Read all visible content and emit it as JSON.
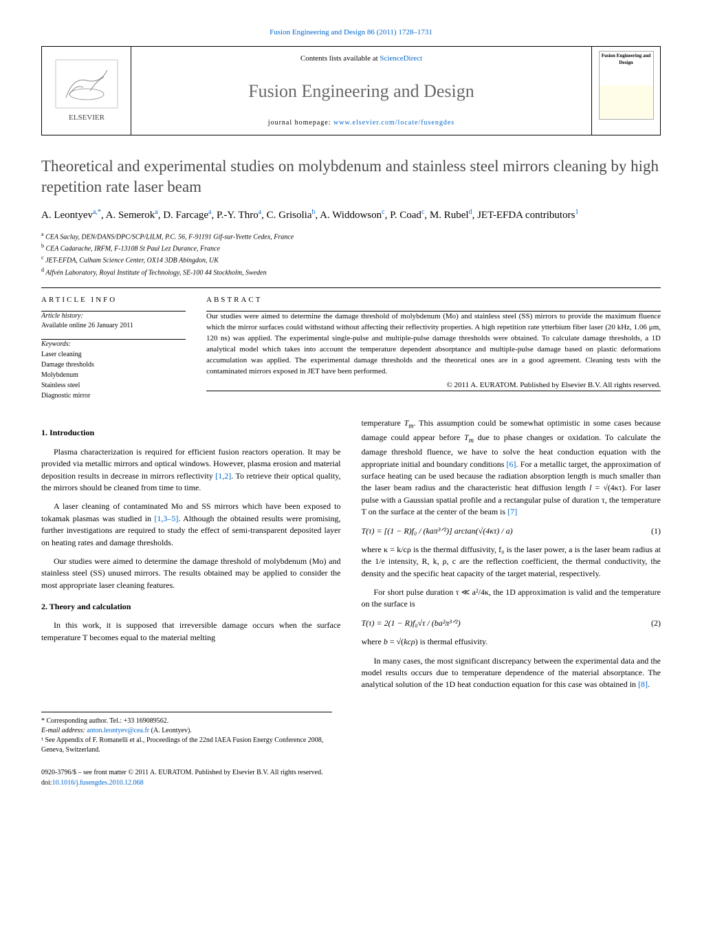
{
  "header": {
    "topLink": "Fusion Engineering and Design 86 (2011) 1728–1731",
    "listsPrefix": "Contents lists available at ",
    "listsLink": "ScienceDirect",
    "journalTitle": "Fusion Engineering and Design",
    "homepagePrefix": "journal homepage: ",
    "homepageLink": "www.elsevier.com/locate/fusengdes",
    "coverTitle": "Fusion Engineering and Design"
  },
  "article": {
    "title": "Theoretical and experimental studies on molybdenum and stainless steel mirrors cleaning by high repetition rate laser beam",
    "authorsHtml": "A. Leontyev<sup>a,*</sup>, A. Semerok<sup>a</sup>, D. Farcage<sup>a</sup>, P.-Y. Thro<sup>a</sup>, C. Grisolia<sup>b</sup>, A. Widdowson<sup>c</sup>, P. Coad<sup>c</sup>, M. Rubel<sup>d</sup>, JET-EFDA contributors<sup>1</sup>"
  },
  "affiliations": {
    "a": "CEA Saclay, DEN/DANS/DPC/SCP/LILM, P.C. 56, F-91191 Gif-sur-Yvette Cedex, France",
    "b": "CEA Cadarache, IRFM, F-13108 St Paul Lez Durance, France",
    "c": "JET-EFDA, Culham Science Center, OX14 3DB Abingdon, UK",
    "d": "Alfvén Laboratory, Royal Institute of Technology, SE-100 44 Stockholm, Sweden"
  },
  "info": {
    "articleInfoHdr": "ARTICLE INFO",
    "historyHdr": "Article history:",
    "historyLine": "Available online 26 January 2011",
    "keywordsHdr": "Keywords:",
    "keywords": [
      "Laser cleaning",
      "Damage thresholds",
      "Molybdenum",
      "Stainless steel",
      "Diagnostic mirror"
    ]
  },
  "abstract": {
    "hdr": "ABSTRACT",
    "text": "Our studies were aimed to determine the damage threshold of molybdenum (Mo) and stainless steel (SS) mirrors to provide the maximum fluence which the mirror surfaces could withstand without affecting their reflectivity properties. A high repetition rate ytterbium fiber laser (20 kHz, 1.06 μm, 120 ns) was applied. The experimental single-pulse and multiple-pulse damage thresholds were obtained. To calculate damage thresholds, a 1D analytical model which takes into account the temperature dependent absorptance and multiple-pulse damage based on plastic deformations accumulation was applied. The experimental damage thresholds and the theoretical ones are in a good agreement. Cleaning tests with the contaminated mirrors exposed in JET have been performed.",
    "copyright": "© 2011 A. EURATOM. Published by Elsevier B.V. All rights reserved."
  },
  "body": {
    "sec1": "1.  Introduction",
    "p1": "Plasma characterization is required for efficient fusion reactors operation. It may be provided via metallic mirrors and optical windows. However, plasma erosion and material deposition results in decrease in mirrors reflectivity [1,2]. To retrieve their optical quality, the mirrors should be cleaned from time to time.",
    "p2": "A laser cleaning of contaminated Mo and SS mirrors which have been exposed to tokamak plasmas was studied in [1,3–5]. Although the obtained results were promising, further investigations are required to study the effect of semi-transparent deposited layer on heating rates and damage thresholds.",
    "p3": "Our studies were aimed to determine the damage threshold of molybdenum (Mo) and stainless steel (SS) unused mirrors. The results obtained may be applied to consider the most appropriate laser cleaning features.",
    "sec2": "2.  Theory and calculation",
    "p4": "In this work, it is supposed that irreversible damage occurs when the surface temperature T becomes equal to the material melting",
    "p5a": "temperature ",
    "p5b": ". This assumption could be somewhat optimistic in some cases because damage could appear before ",
    "p5c": " due to phase changes or oxidation. To calculate the damage threshold fluence, we have to solve the heat conduction equation with the appropriate initial and boundary conditions [6]. For a metallic target, the approximation of surface heating can be used because the radiation absorption length is much smaller than the laser beam radius and the characteristic heat diffusion length ",
    "p5d": ". For laser pulse with a Gaussian spatial profile and a rectangular pulse of duration τ, the temperature T on the surface at the center of the beam is [7]",
    "eq1": "T(τ) = [(1 − R)f₀ / (kaπ³ᐟ²)] arctan(√(4κτ) / a)",
    "eq1no": "(1)",
    "p6": "where κ = k/cρ is the thermal diffusivity, f₀ is the laser power, a is the laser beam radius at the 1/e intensity, R, k, ρ, c are the reflection coefficient, the thermal conductivity, the density and the specific heat capacity of the target material, respectively.",
    "p7": "For short pulse duration τ ≪ a²/4κ, the 1D approximation is valid and the temperature on the surface is",
    "eq2": "T(τ) = 2(1 − R)f₀√τ / (ba²π³ᐟ²)",
    "eq2no": "(2)",
    "p8a": "where ",
    "p8b": " is thermal effusivity.",
    "p9": "In many cases, the most significant discrepancy between the experimental data and the model results occurs due to temperature dependence of the material absorptance. The analytical solution of the 1D heat conduction equation for this case was obtained in [8]."
  },
  "footnotes": {
    "corr": "* Corresponding author. Tel.: +33 169089562.",
    "emailLabel": "E-mail address: ",
    "email": "anton.leontyev@cea.fr",
    "emailSuffix": " (A. Leontyev).",
    "note1": "¹ See Appendix of F. Romanelli et al., Proceedings of the 22nd IAEA Fusion Energy Conference 2008, Geneva, Switzerland."
  },
  "footer": {
    "line1": "0920-3796/$ – see front matter © 2011 A. EURATOM. Published by Elsevier B.V. All rights reserved.",
    "doiPrefix": "doi:",
    "doi": "10.1016/j.fusengdes.2010.12.068"
  },
  "colors": {
    "link": "#0066cc",
    "titleGray": "#4a4a4a"
  }
}
